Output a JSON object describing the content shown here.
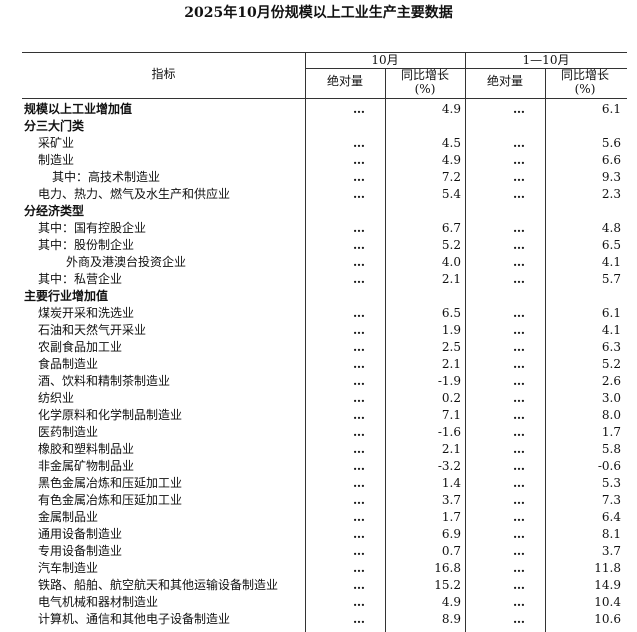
{
  "header": {
    "title": "2025年10月份规模以上工业生产主要数据"
  },
  "table": {
    "columns": {
      "indicator": "指标",
      "periods": [
        "10月",
        "1—10月"
      ],
      "sub": [
        "绝对量",
        "同比增长\n(%)",
        "绝对量",
        "同比增长\n(%)"
      ]
    },
    "rows": [
      [
        "规模以上工业增加值",
        "…",
        "4.9",
        "…",
        "6.1"
      ],
      [
        "分三大门类"
      ],
      [
        "采矿业",
        "…",
        "4.5",
        "…",
        "5.6"
      ],
      [
        "制造业",
        "…",
        "4.9",
        "…",
        "6.6"
      ],
      [
        "其中：高技术制造业",
        "…",
        "7.2",
        "…",
        "9.3"
      ],
      [
        "电力、热力、燃气及水生产和供应业",
        "…",
        "5.4",
        "…",
        "2.3"
      ],
      [
        "分经济类型"
      ],
      [
        "其中：国有控股企业",
        "…",
        "6.7",
        "…",
        "4.8"
      ],
      [
        "其中：股份制企业",
        "…",
        "5.2",
        "…",
        "6.5"
      ],
      [
        "外商及港澳台投资企业",
        "…",
        "4.0",
        "…",
        "4.1"
      ],
      [
        "其中：私营企业",
        "…",
        "2.1",
        "…",
        "5.7"
      ],
      [
        "主要行业增加值"
      ],
      [
        "煤炭开采和洗选业",
        "…",
        "6.5",
        "…",
        "6.1"
      ],
      [
        "石油和天然气开采业",
        "…",
        "1.9",
        "…",
        "4.1"
      ],
      [
        "农副食品加工业",
        "…",
        "2.5",
        "…",
        "6.3"
      ],
      [
        "食品制造业",
        "…",
        "2.1",
        "…",
        "5.2"
      ],
      [
        "酒、饮料和精制茶制造业",
        "…",
        "-1.9",
        "…",
        "2.6"
      ],
      [
        "纺织业",
        "…",
        "0.2",
        "…",
        "3.0"
      ],
      [
        "化学原料和化学制品制造业",
        "…",
        "7.1",
        "…",
        "8.0"
      ],
      [
        "医药制造业",
        "…",
        "-1.6",
        "…",
        "1.7"
      ],
      [
        "橡胶和塑料制品业",
        "…",
        "2.1",
        "…",
        "5.8"
      ],
      [
        "非金属矿物制品业",
        "…",
        "-3.2",
        "…",
        "-0.6"
      ],
      [
        "黑色金属冶炼和压延加工业",
        "…",
        "1.4",
        "…",
        "5.3"
      ],
      [
        "有色金属冶炼和压延加工业",
        "…",
        "3.7",
        "…",
        "7.3"
      ],
      [
        "金属制品业",
        "…",
        "1.7",
        "…",
        "6.4"
      ],
      [
        "通用设备制造业",
        "…",
        "6.9",
        "…",
        "8.1"
      ],
      [
        "专用设备制造业",
        "…",
        "0.7",
        "…",
        "3.7"
      ],
      [
        "汽车制造业",
        "…",
        "16.8",
        "…",
        "11.8"
      ],
      [
        "铁路、船舶、航空航天和其他运输设备制造业",
        "…",
        "15.2",
        "…",
        "14.9"
      ],
      [
        "电气机械和器材制造业",
        "…",
        "4.9",
        "…",
        "10.4"
      ],
      [
        "计算机、通信和其他电子设备制造业",
        "…",
        "8.9",
        "…",
        "10.6"
      ]
    ]
  }
}
